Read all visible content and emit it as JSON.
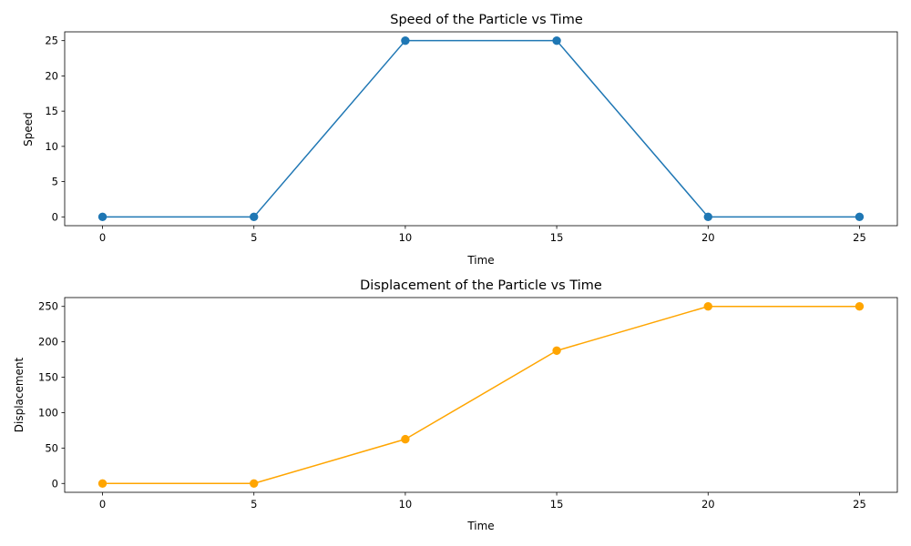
{
  "chart_data": [
    {
      "type": "line",
      "title": "Speed of the Particle vs Time",
      "xlabel": "Time",
      "ylabel": "Speed",
      "x": [
        0,
        5,
        10,
        15,
        20,
        25
      ],
      "series": [
        {
          "values": [
            0,
            0,
            25,
            25,
            0,
            0
          ],
          "color": "#1f77b4",
          "marker": "circle"
        }
      ],
      "xlim": [
        -1.25,
        26.25
      ],
      "ylim": [
        -1.25,
        26.25
      ],
      "xticks": [
        0,
        5,
        10,
        15,
        20,
        25
      ],
      "yticks": [
        0,
        5,
        10,
        15,
        20,
        25
      ],
      "grid": false
    },
    {
      "type": "line",
      "title": "Displacement of the Particle vs Time",
      "xlabel": "Time",
      "ylabel": "Displacement",
      "x": [
        0,
        5,
        10,
        15,
        20,
        25
      ],
      "series": [
        {
          "values": [
            0,
            0,
            62.5,
            187.5,
            250,
            250
          ],
          "color": "#ffa500",
          "marker": "circle"
        }
      ],
      "xlim": [
        -1.25,
        26.25
      ],
      "ylim": [
        -12.5,
        262.5
      ],
      "xticks": [
        0,
        5,
        10,
        15,
        20,
        25
      ],
      "yticks": [
        0,
        50,
        100,
        150,
        200,
        250
      ],
      "grid": false
    }
  ]
}
